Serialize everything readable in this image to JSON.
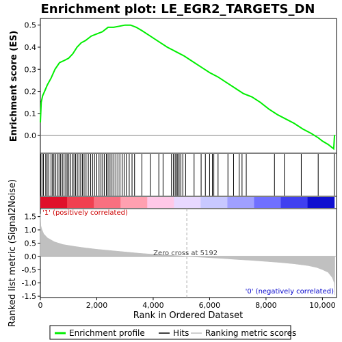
{
  "chart_data": {
    "type": "line",
    "title": "Enrichment plot: LE_EGR2_TARGETS_DN",
    "ylabel_top": "Enrichment score (ES)",
    "ylabel_bottom": "Ranked list metric (Signal2Noise)",
    "xlabel": "Rank in Ordered Dataset",
    "xlim": [
      0,
      10500
    ],
    "ylim_es": [
      -0.08,
      0.53
    ],
    "ylim_metric": [
      -1.55,
      1.8
    ],
    "x_ticks": [
      "0",
      "2,000",
      "4,000",
      "6,000",
      "8,000",
      "10,000"
    ],
    "x_tick_values": [
      0,
      2000,
      4000,
      6000,
      8000,
      10000
    ],
    "es_ticks": [
      "0.0",
      "0.1",
      "0.2",
      "0.3",
      "0.4",
      "0.5"
    ],
    "es_tick_values": [
      0.0,
      0.1,
      0.2,
      0.3,
      0.4,
      0.5
    ],
    "metric_ticks": [
      "-1.5",
      "-1.0",
      "-0.5",
      "0.0",
      "0.5",
      "1.0",
      "1.5"
    ],
    "metric_tick_values": [
      -1.5,
      -1.0,
      -0.5,
      0.0,
      0.5,
      1.0,
      1.5
    ],
    "series": [
      {
        "name": "Enrichment profile",
        "color": "#00ee00",
        "x": [
          0,
          30,
          80,
          150,
          250,
          380,
          520,
          680,
          850,
          1000,
          1150,
          1300,
          1450,
          1600,
          1800,
          2000,
          2200,
          2400,
          2600,
          2800,
          3000,
          3200,
          3400,
          3600,
          3900,
          4200,
          4500,
          4800,
          5100,
          5400,
          5700,
          6000,
          6300,
          6600,
          6900,
          7200,
          7500,
          7800,
          8100,
          8400,
          8700,
          9000,
          9300,
          9600,
          9850,
          10000,
          10200,
          10400,
          10430
        ],
        "y": [
          0.06,
          0.15,
          0.18,
          0.2,
          0.23,
          0.26,
          0.3,
          0.33,
          0.34,
          0.35,
          0.37,
          0.4,
          0.42,
          0.43,
          0.45,
          0.46,
          0.47,
          0.49,
          0.49,
          0.495,
          0.5,
          0.5,
          0.49,
          0.475,
          0.45,
          0.425,
          0.4,
          0.38,
          0.36,
          0.335,
          0.31,
          0.285,
          0.265,
          0.24,
          0.215,
          0.19,
          0.175,
          0.15,
          0.12,
          0.095,
          0.075,
          0.055,
          0.03,
          0.01,
          -0.01,
          -0.025,
          -0.04,
          -0.06,
          0.003
        ]
      },
      {
        "name": "Hits",
        "color": "#000000",
        "x": [
          15,
          60,
          110,
          190,
          240,
          300,
          380,
          430,
          480,
          540,
          600,
          660,
          720,
          780,
          840,
          900,
          950,
          1010,
          1070,
          1130,
          1190,
          1250,
          1310,
          1370,
          1430,
          1490,
          1550,
          1620,
          1700,
          1780,
          1850,
          1920,
          2000,
          2080,
          2150,
          2210,
          2270,
          2340,
          2400,
          2470,
          2540,
          2610,
          2680,
          2750,
          2820,
          2900,
          2970,
          3050,
          3150,
          3250,
          3340,
          3600,
          3900,
          4200,
          4350,
          4650,
          4720,
          4780,
          4830,
          4870,
          4920,
          4980,
          5050,
          5150,
          5450,
          5700,
          5850,
          6000,
          6100,
          6150,
          6300,
          6650,
          6850,
          7050,
          7150,
          7300,
          8300,
          8650,
          9250,
          9850,
          10420
        ]
      },
      {
        "name": "Ranking metric scores",
        "color": "#c0c0c0",
        "x": [
          0,
          20,
          60,
          120,
          250,
          500,
          800,
          1200,
          1600,
          2000,
          2500,
          3000,
          3500,
          4000,
          4500,
          5000,
          5192,
          5500,
          6000,
          6500,
          7000,
          7500,
          8000,
          8500,
          9000,
          9500,
          9800,
          10000,
          10200,
          10350,
          10420,
          10440
        ],
        "y": [
          1.6,
          1.15,
          1.0,
          0.85,
          0.7,
          0.55,
          0.45,
          0.38,
          0.32,
          0.27,
          0.22,
          0.17,
          0.12,
          0.08,
          0.05,
          0.02,
          0.0,
          -0.02,
          -0.05,
          -0.08,
          -0.12,
          -0.15,
          -0.19,
          -0.23,
          -0.28,
          -0.35,
          -0.42,
          -0.5,
          -0.6,
          -0.8,
          -1.0,
          -1.45
        ]
      }
    ],
    "annotations": {
      "positive": "'1' (positively correlated)",
      "negative": "'0' (negatively correlated)",
      "zero_cross": "Zero cross at 5192",
      "zero_cross_x": 5192
    },
    "colorbar_colors": [
      "#e0102a",
      "#f04050",
      "#f87080",
      "#ffa0b0",
      "#ffc8e8",
      "#e8d8ff",
      "#c8c8ff",
      "#a0a0ff",
      "#7070ff",
      "#4040f0",
      "#1010d0"
    ],
    "legend": [
      "Enrichment profile",
      "Hits",
      "Ranking metric scores"
    ],
    "legend_position": "bottom",
    "grid": false
  }
}
